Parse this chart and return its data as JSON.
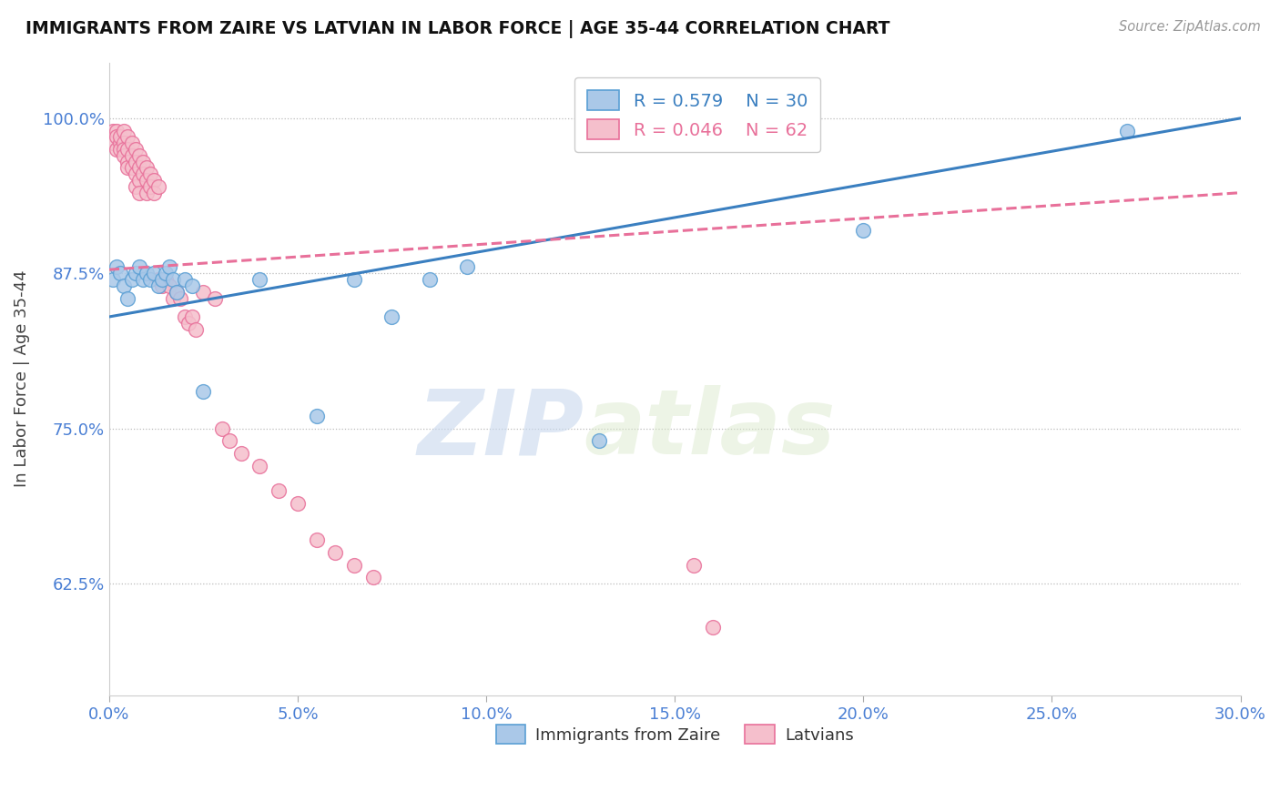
{
  "title": "IMMIGRANTS FROM ZAIRE VS LATVIAN IN LABOR FORCE | AGE 35-44 CORRELATION CHART",
  "source_text": "Source: ZipAtlas.com",
  "ylabel": "In Labor Force | Age 35-44",
  "xlim": [
    0.0,
    0.3
  ],
  "ylim": [
    0.535,
    1.045
  ],
  "yticks": [
    0.625,
    0.75,
    0.875,
    1.0
  ],
  "ytick_labels": [
    "62.5%",
    "75.0%",
    "87.5%",
    "100.0%"
  ],
  "xticks": [
    0.0,
    0.05,
    0.1,
    0.15,
    0.2,
    0.25,
    0.3
  ],
  "xtick_labels": [
    "0.0%",
    "5.0%",
    "10.0%",
    "15.0%",
    "20.0%",
    "25.0%",
    "30.0%"
  ],
  "blue_R": 0.579,
  "blue_N": 30,
  "pink_R": 0.046,
  "pink_N": 62,
  "blue_color": "#aac8e8",
  "pink_color": "#f5bfcc",
  "blue_edge_color": "#5a9fd4",
  "pink_edge_color": "#e8709a",
  "blue_line_color": "#3a7fc0",
  "pink_line_color": "#e8709a",
  "legend_label_blue": "Immigrants from Zaire",
  "legend_label_pink": "Latvians",
  "watermark_zip": "ZIP",
  "watermark_atlas": "atlas",
  "blue_x": [
    0.001,
    0.002,
    0.003,
    0.004,
    0.005,
    0.006,
    0.007,
    0.008,
    0.009,
    0.01,
    0.011,
    0.012,
    0.013,
    0.014,
    0.015,
    0.016,
    0.017,
    0.018,
    0.02,
    0.022,
    0.025,
    0.04,
    0.055,
    0.065,
    0.075,
    0.085,
    0.095,
    0.13,
    0.2,
    0.27
  ],
  "blue_y": [
    0.87,
    0.88,
    0.875,
    0.865,
    0.855,
    0.87,
    0.875,
    0.88,
    0.87,
    0.875,
    0.87,
    0.875,
    0.865,
    0.87,
    0.875,
    0.88,
    0.87,
    0.86,
    0.87,
    0.865,
    0.78,
    0.87,
    0.76,
    0.87,
    0.84,
    0.87,
    0.88,
    0.74,
    0.91,
    0.99
  ],
  "pink_x": [
    0.001,
    0.001,
    0.002,
    0.002,
    0.002,
    0.003,
    0.003,
    0.003,
    0.004,
    0.004,
    0.004,
    0.004,
    0.005,
    0.005,
    0.005,
    0.005,
    0.006,
    0.006,
    0.006,
    0.007,
    0.007,
    0.007,
    0.007,
    0.008,
    0.008,
    0.008,
    0.008,
    0.009,
    0.009,
    0.01,
    0.01,
    0.01,
    0.011,
    0.011,
    0.012,
    0.012,
    0.013,
    0.013,
    0.014,
    0.015,
    0.016,
    0.017,
    0.018,
    0.019,
    0.02,
    0.021,
    0.022,
    0.023,
    0.025,
    0.028,
    0.03,
    0.032,
    0.035,
    0.04,
    0.045,
    0.05,
    0.055,
    0.06,
    0.065,
    0.07,
    0.155,
    0.16
  ],
  "pink_y": [
    0.99,
    0.98,
    0.99,
    0.985,
    0.975,
    0.98,
    0.985,
    0.975,
    0.99,
    0.98,
    0.975,
    0.97,
    0.985,
    0.975,
    0.965,
    0.96,
    0.98,
    0.97,
    0.96,
    0.975,
    0.965,
    0.955,
    0.945,
    0.97,
    0.96,
    0.95,
    0.94,
    0.965,
    0.955,
    0.96,
    0.95,
    0.94,
    0.955,
    0.945,
    0.95,
    0.94,
    0.945,
    0.87,
    0.865,
    0.87,
    0.865,
    0.855,
    0.86,
    0.855,
    0.84,
    0.835,
    0.84,
    0.83,
    0.86,
    0.855,
    0.75,
    0.74,
    0.73,
    0.72,
    0.7,
    0.69,
    0.66,
    0.65,
    0.64,
    0.63,
    0.64,
    0.59
  ],
  "blue_trend_x0": 0.0,
  "blue_trend_y0": 0.84,
  "blue_trend_x1": 0.3,
  "blue_trend_y1": 1.0,
  "pink_trend_x0": 0.0,
  "pink_trend_y0": 0.878,
  "pink_trend_x1": 0.3,
  "pink_trend_y1": 0.94
}
